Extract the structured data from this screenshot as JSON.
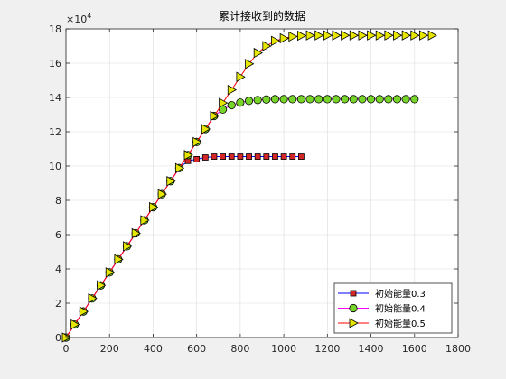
{
  "chart_data": {
    "type": "line",
    "title": "累计接收到的数据",
    "xlabel": "",
    "ylabel": "",
    "y_exponent_label": "×10^4",
    "y_exponent_base": "×10",
    "y_exponent_power": "4",
    "xlim": [
      0,
      1800
    ],
    "ylim": [
      0,
      18
    ],
    "xticks": [
      0,
      200,
      400,
      600,
      800,
      1000,
      1200,
      1400,
      1600,
      1800
    ],
    "yticks": [
      0,
      2,
      4,
      6,
      8,
      10,
      12,
      14,
      16,
      18
    ],
    "grid": true,
    "legend_location": "bottom-right",
    "series": [
      {
        "name": "初始能量0.3",
        "line_color": "#0000ff",
        "marker": "square",
        "marker_fill": "#d62728",
        "x": [
          0,
          40,
          80,
          120,
          160,
          200,
          240,
          280,
          320,
          360,
          400,
          440,
          480,
          520,
          560,
          600,
          640,
          680,
          720,
          760,
          800,
          840,
          880,
          920,
          960,
          1000,
          1040,
          1080
        ],
        "y": [
          0,
          0.76,
          1.52,
          2.28,
          3.04,
          3.8,
          4.56,
          5.32,
          6.08,
          6.84,
          7.6,
          8.36,
          9.12,
          9.88,
          10.3,
          10.4,
          10.5,
          10.55,
          10.55,
          10.55,
          10.55,
          10.55,
          10.55,
          10.55,
          10.55,
          10.55,
          10.55,
          10.55
        ]
      },
      {
        "name": "初始能量0.4",
        "line_color": "#ff00ff",
        "marker": "circle",
        "marker_fill": "#77d42a",
        "x": [
          0,
          40,
          80,
          120,
          160,
          200,
          240,
          280,
          320,
          360,
          400,
          440,
          480,
          520,
          560,
          600,
          640,
          680,
          720,
          760,
          800,
          840,
          880,
          920,
          960,
          1000,
          1040,
          1080,
          1120,
          1160,
          1200,
          1240,
          1280,
          1320,
          1360,
          1400,
          1440,
          1480,
          1520,
          1560,
          1600
        ],
        "y": [
          0,
          0.76,
          1.52,
          2.28,
          3.04,
          3.8,
          4.56,
          5.32,
          6.08,
          6.84,
          7.6,
          8.36,
          9.12,
          9.88,
          10.64,
          11.4,
          12.16,
          12.92,
          13.3,
          13.55,
          13.7,
          13.8,
          13.85,
          13.88,
          13.9,
          13.9,
          13.9,
          13.9,
          13.9,
          13.9,
          13.9,
          13.9,
          13.9,
          13.9,
          13.9,
          13.9,
          13.9,
          13.9,
          13.9,
          13.9,
          13.9
        ]
      },
      {
        "name": "初始能量0.5",
        "line_color": "#ff0000",
        "marker": "triangle-right",
        "marker_fill": "#e6e600",
        "x": [
          0,
          40,
          80,
          120,
          160,
          200,
          240,
          280,
          320,
          360,
          400,
          440,
          480,
          520,
          560,
          600,
          640,
          680,
          720,
          760,
          800,
          840,
          880,
          920,
          960,
          1000,
          1040,
          1080,
          1120,
          1160,
          1200,
          1240,
          1280,
          1320,
          1360,
          1400,
          1440,
          1480,
          1520,
          1560,
          1600,
          1640,
          1680
        ],
        "y": [
          0,
          0.76,
          1.52,
          2.28,
          3.04,
          3.8,
          4.56,
          5.32,
          6.08,
          6.84,
          7.6,
          8.36,
          9.12,
          9.88,
          10.64,
          11.4,
          12.16,
          12.92,
          13.68,
          14.44,
          15.2,
          15.96,
          16.6,
          17.0,
          17.3,
          17.45,
          17.55,
          17.6,
          17.62,
          17.62,
          17.62,
          17.62,
          17.62,
          17.62,
          17.62,
          17.62,
          17.62,
          17.62,
          17.62,
          17.62,
          17.62,
          17.62,
          17.62
        ]
      }
    ]
  }
}
